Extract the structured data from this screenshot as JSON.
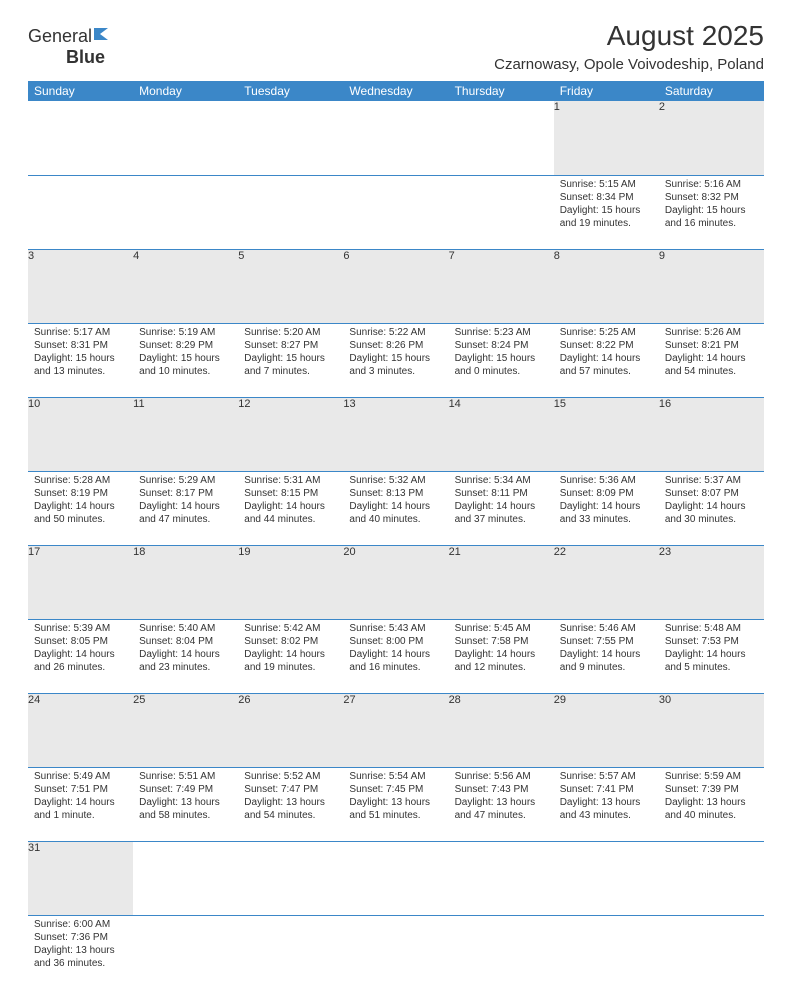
{
  "logo": {
    "part1": "General",
    "part2": "Blue"
  },
  "title": "August 2025",
  "location": "Czarnowasy, Opole Voivodeship, Poland",
  "colors": {
    "header_bg": "#3b87c8",
    "header_fg": "#ffffff",
    "daynum_bg": "#e9e9e9",
    "text": "#333333",
    "rule": "#3b87c8"
  },
  "daynames": [
    "Sunday",
    "Monday",
    "Tuesday",
    "Wednesday",
    "Thursday",
    "Friday",
    "Saturday"
  ],
  "weeks": [
    [
      null,
      null,
      null,
      null,
      null,
      {
        "d": "1",
        "sr": "Sunrise: 5:15 AM",
        "ss": "Sunset: 8:34 PM",
        "dl": "Daylight: 15 hours\nand 19 minutes."
      },
      {
        "d": "2",
        "sr": "Sunrise: 5:16 AM",
        "ss": "Sunset: 8:32 PM",
        "dl": "Daylight: 15 hours\nand 16 minutes."
      }
    ],
    [
      {
        "d": "3",
        "sr": "Sunrise: 5:17 AM",
        "ss": "Sunset: 8:31 PM",
        "dl": "Daylight: 15 hours\nand 13 minutes."
      },
      {
        "d": "4",
        "sr": "Sunrise: 5:19 AM",
        "ss": "Sunset: 8:29 PM",
        "dl": "Daylight: 15 hours\nand 10 minutes."
      },
      {
        "d": "5",
        "sr": "Sunrise: 5:20 AM",
        "ss": "Sunset: 8:27 PM",
        "dl": "Daylight: 15 hours\nand 7 minutes."
      },
      {
        "d": "6",
        "sr": "Sunrise: 5:22 AM",
        "ss": "Sunset: 8:26 PM",
        "dl": "Daylight: 15 hours\nand 3 minutes."
      },
      {
        "d": "7",
        "sr": "Sunrise: 5:23 AM",
        "ss": "Sunset: 8:24 PM",
        "dl": "Daylight: 15 hours\nand 0 minutes."
      },
      {
        "d": "8",
        "sr": "Sunrise: 5:25 AM",
        "ss": "Sunset: 8:22 PM",
        "dl": "Daylight: 14 hours\nand 57 minutes."
      },
      {
        "d": "9",
        "sr": "Sunrise: 5:26 AM",
        "ss": "Sunset: 8:21 PM",
        "dl": "Daylight: 14 hours\nand 54 minutes."
      }
    ],
    [
      {
        "d": "10",
        "sr": "Sunrise: 5:28 AM",
        "ss": "Sunset: 8:19 PM",
        "dl": "Daylight: 14 hours\nand 50 minutes."
      },
      {
        "d": "11",
        "sr": "Sunrise: 5:29 AM",
        "ss": "Sunset: 8:17 PM",
        "dl": "Daylight: 14 hours\nand 47 minutes."
      },
      {
        "d": "12",
        "sr": "Sunrise: 5:31 AM",
        "ss": "Sunset: 8:15 PM",
        "dl": "Daylight: 14 hours\nand 44 minutes."
      },
      {
        "d": "13",
        "sr": "Sunrise: 5:32 AM",
        "ss": "Sunset: 8:13 PM",
        "dl": "Daylight: 14 hours\nand 40 minutes."
      },
      {
        "d": "14",
        "sr": "Sunrise: 5:34 AM",
        "ss": "Sunset: 8:11 PM",
        "dl": "Daylight: 14 hours\nand 37 minutes."
      },
      {
        "d": "15",
        "sr": "Sunrise: 5:36 AM",
        "ss": "Sunset: 8:09 PM",
        "dl": "Daylight: 14 hours\nand 33 minutes."
      },
      {
        "d": "16",
        "sr": "Sunrise: 5:37 AM",
        "ss": "Sunset: 8:07 PM",
        "dl": "Daylight: 14 hours\nand 30 minutes."
      }
    ],
    [
      {
        "d": "17",
        "sr": "Sunrise: 5:39 AM",
        "ss": "Sunset: 8:05 PM",
        "dl": "Daylight: 14 hours\nand 26 minutes."
      },
      {
        "d": "18",
        "sr": "Sunrise: 5:40 AM",
        "ss": "Sunset: 8:04 PM",
        "dl": "Daylight: 14 hours\nand 23 minutes."
      },
      {
        "d": "19",
        "sr": "Sunrise: 5:42 AM",
        "ss": "Sunset: 8:02 PM",
        "dl": "Daylight: 14 hours\nand 19 minutes."
      },
      {
        "d": "20",
        "sr": "Sunrise: 5:43 AM",
        "ss": "Sunset: 8:00 PM",
        "dl": "Daylight: 14 hours\nand 16 minutes."
      },
      {
        "d": "21",
        "sr": "Sunrise: 5:45 AM",
        "ss": "Sunset: 7:58 PM",
        "dl": "Daylight: 14 hours\nand 12 minutes."
      },
      {
        "d": "22",
        "sr": "Sunrise: 5:46 AM",
        "ss": "Sunset: 7:55 PM",
        "dl": "Daylight: 14 hours\nand 9 minutes."
      },
      {
        "d": "23",
        "sr": "Sunrise: 5:48 AM",
        "ss": "Sunset: 7:53 PM",
        "dl": "Daylight: 14 hours\nand 5 minutes."
      }
    ],
    [
      {
        "d": "24",
        "sr": "Sunrise: 5:49 AM",
        "ss": "Sunset: 7:51 PM",
        "dl": "Daylight: 14 hours\nand 1 minute."
      },
      {
        "d": "25",
        "sr": "Sunrise: 5:51 AM",
        "ss": "Sunset: 7:49 PM",
        "dl": "Daylight: 13 hours\nand 58 minutes."
      },
      {
        "d": "26",
        "sr": "Sunrise: 5:52 AM",
        "ss": "Sunset: 7:47 PM",
        "dl": "Daylight: 13 hours\nand 54 minutes."
      },
      {
        "d": "27",
        "sr": "Sunrise: 5:54 AM",
        "ss": "Sunset: 7:45 PM",
        "dl": "Daylight: 13 hours\nand 51 minutes."
      },
      {
        "d": "28",
        "sr": "Sunrise: 5:56 AM",
        "ss": "Sunset: 7:43 PM",
        "dl": "Daylight: 13 hours\nand 47 minutes."
      },
      {
        "d": "29",
        "sr": "Sunrise: 5:57 AM",
        "ss": "Sunset: 7:41 PM",
        "dl": "Daylight: 13 hours\nand 43 minutes."
      },
      {
        "d": "30",
        "sr": "Sunrise: 5:59 AM",
        "ss": "Sunset: 7:39 PM",
        "dl": "Daylight: 13 hours\nand 40 minutes."
      }
    ],
    [
      {
        "d": "31",
        "sr": "Sunrise: 6:00 AM",
        "ss": "Sunset: 7:36 PM",
        "dl": "Daylight: 13 hours\nand 36 minutes."
      },
      null,
      null,
      null,
      null,
      null,
      null
    ]
  ]
}
